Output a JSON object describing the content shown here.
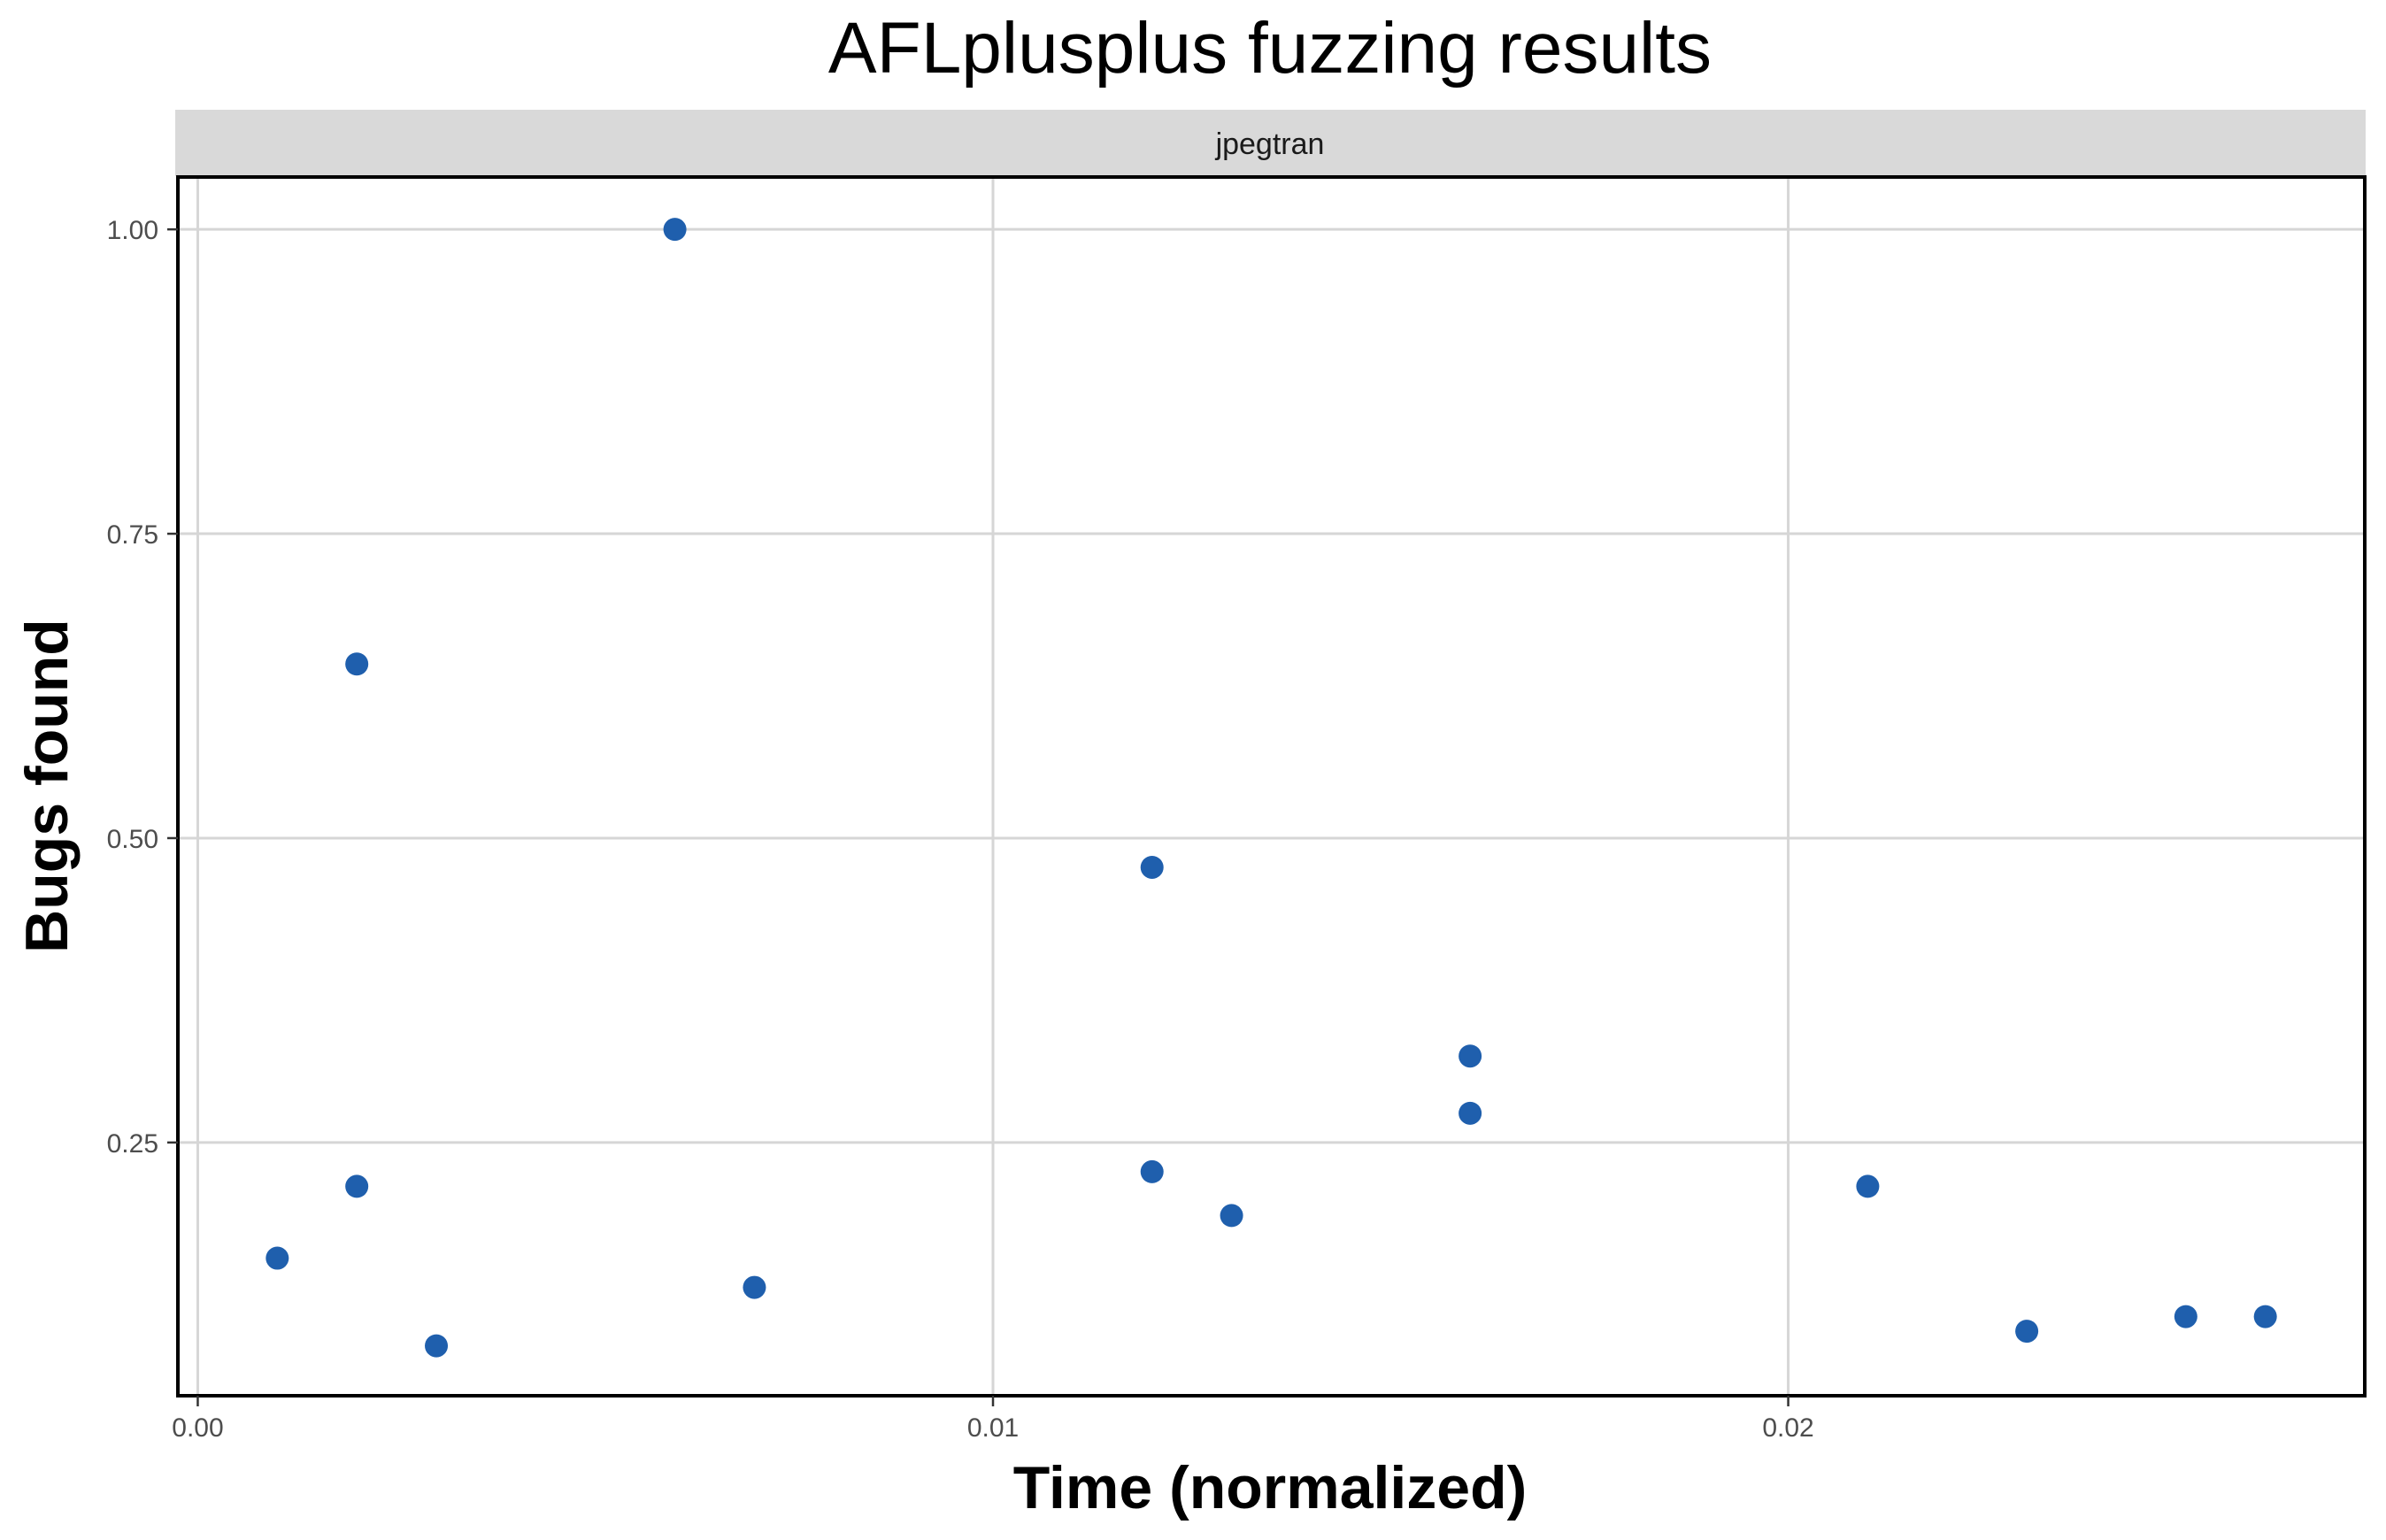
{
  "chart_data": {
    "type": "scatter",
    "title": "AFLplusplus fuzzing results",
    "facet_label": "jpegtran",
    "xlabel": "Time (normalized)",
    "ylabel": "Bugs found",
    "xlim": [
      -0.00025,
      0.02725
    ],
    "ylim": [
      0.042,
      1.043
    ],
    "x_ticks": [
      0.0,
      0.01,
      0.02
    ],
    "x_tick_labels": [
      "0.00",
      "0.01",
      "0.02"
    ],
    "y_ticks": [
      0.25,
      0.5,
      0.75,
      1.0
    ],
    "y_tick_labels": [
      "0.25",
      "0.50",
      "0.75",
      "1.00"
    ],
    "grid": true,
    "point_color": "#1f5fad",
    "points": [
      {
        "x": 0.001,
        "y": 0.155
      },
      {
        "x": 0.002,
        "y": 0.643
      },
      {
        "x": 0.002,
        "y": 0.214
      },
      {
        "x": 0.003,
        "y": 0.083
      },
      {
        "x": 0.006,
        "y": 1.0
      },
      {
        "x": 0.007,
        "y": 0.131
      },
      {
        "x": 0.012,
        "y": 0.476
      },
      {
        "x": 0.012,
        "y": 0.226
      },
      {
        "x": 0.013,
        "y": 0.19
      },
      {
        "x": 0.016,
        "y": 0.321
      },
      {
        "x": 0.016,
        "y": 0.274
      },
      {
        "x": 0.021,
        "y": 0.214
      },
      {
        "x": 0.023,
        "y": 0.095
      },
      {
        "x": 0.025,
        "y": 0.107
      },
      {
        "x": 0.026,
        "y": 0.107
      }
    ]
  }
}
